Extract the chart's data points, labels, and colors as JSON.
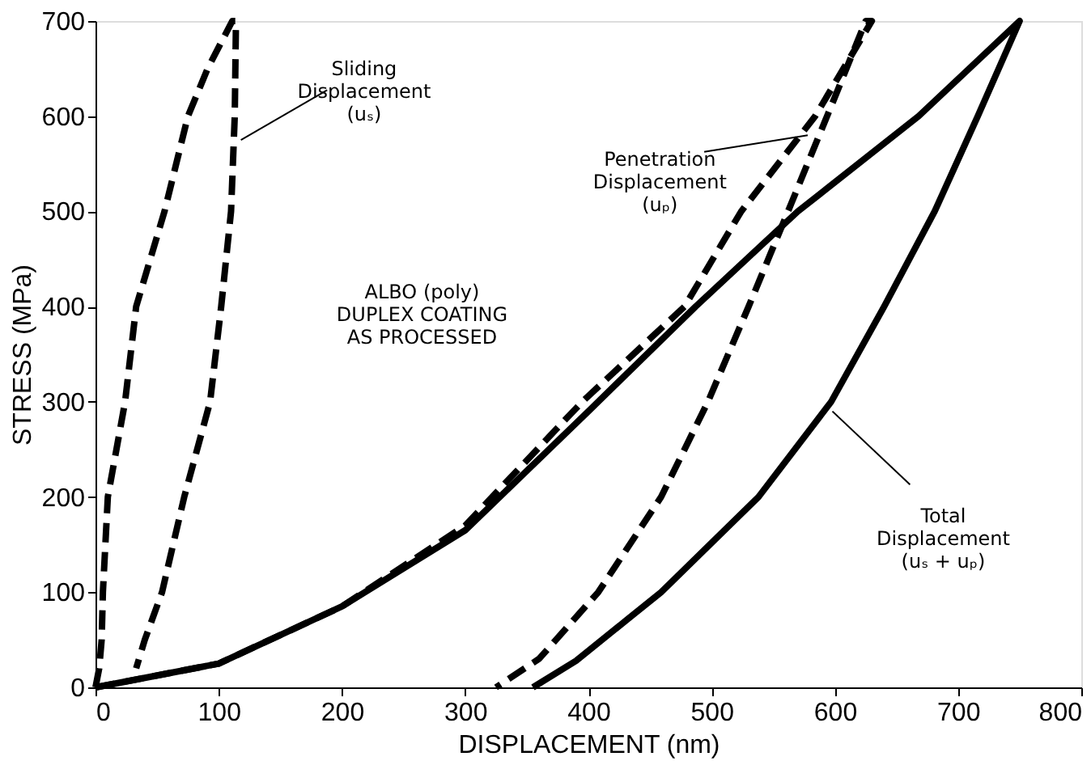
{
  "chart_data": {
    "type": "line",
    "xlabel": "DISPLACEMENT (nm)",
    "ylabel": "STRESS (MPa)",
    "xlim": [
      0,
      800
    ],
    "xticks": [
      0,
      100,
      200,
      300,
      400,
      500,
      600,
      700,
      800
    ],
    "ylim": [
      0,
      700
    ],
    "yticks": [
      0,
      100,
      200,
      300,
      400,
      500,
      600,
      700
    ],
    "grid": false,
    "marker": "none",
    "series": [
      {
        "color": "#000000",
        "line_style": "dashed",
        "x": [
          0,
          3,
          5,
          6,
          10,
          24,
          33,
          56,
          75,
          91,
          111,
          114,
          113,
          110,
          102,
          93,
          72,
          54,
          40,
          33
        ],
        "values": [
          0,
          20,
          50,
          100,
          200,
          300,
          400,
          500,
          600,
          650,
          700,
          700,
          600,
          500,
          400,
          300,
          200,
          100,
          50,
          20
        ]
      },
      {
        "color": "#000000",
        "line_style": "dashed",
        "x": [
          0,
          100,
          200,
          300,
          395,
          478,
          524,
          584,
          630,
          625,
          600,
          562,
          530,
          497,
          459,
          408,
          360,
          325
        ],
        "values": [
          0,
          25,
          85,
          170,
          300,
          400,
          500,
          600,
          700,
          700,
          620,
          500,
          400,
          300,
          200,
          100,
          30,
          0
        ]
      },
      {
        "color": "#000000",
        "line_style": "solid",
        "x": [
          0,
          100,
          200,
          300,
          400,
          487,
          570,
          668,
          709,
          750,
          716,
          681,
          640,
          597,
          538,
          459,
          390,
          355
        ],
        "values": [
          0,
          25,
          85,
          165,
          290,
          400,
          500,
          600,
          650,
          700,
          600,
          500,
          400,
          300,
          200,
          100,
          28,
          0
        ]
      }
    ],
    "annotations": [
      {
        "text": "Sliding\nDisplacement\n(uₛ)",
        "x": 118,
        "y": 575
      },
      {
        "text": "Penetration\nDisplacement\n(uₚ)",
        "x": 578,
        "y": 580
      },
      {
        "text": "Total\nDisplacement\n(uₛ + uₚ)",
        "x": 598,
        "y": 290
      },
      "ALBO (poly)\nDUPLEX COATING\nAS PROCESSED"
    ]
  }
}
